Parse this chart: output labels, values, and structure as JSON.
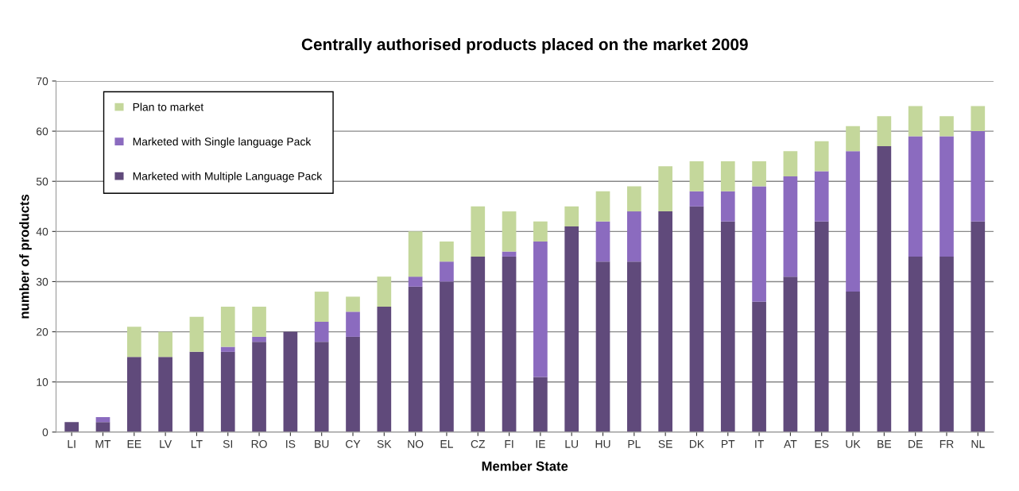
{
  "chart_data": {
    "type": "bar",
    "title": "Centrally authorised products placed on the market 2009",
    "xlabel": "Member State",
    "ylabel": "number of products",
    "categories": [
      "LI",
      "MT",
      "EE",
      "LV",
      "LT",
      "SI",
      "RO",
      "IS",
      "BU",
      "CY",
      "SK",
      "NO",
      "EL",
      "CZ",
      "FI",
      "IE",
      "LU",
      "HU",
      "PL",
      "SE",
      "DK",
      "PT",
      "IT",
      "AT",
      "ES",
      "UK",
      "BE",
      "DE",
      "FR",
      "NL"
    ],
    "stacked": true,
    "ylim": [
      0,
      70
    ],
    "yticks": [
      0,
      10,
      20,
      30,
      40,
      50,
      60,
      70
    ],
    "grid": "y",
    "legend": "top left",
    "series": [
      {
        "name": "Marketed with Multiple Language Pack",
        "color": "#604a7b",
        "values": [
          2,
          2,
          15,
          15,
          16,
          16,
          18,
          20,
          18,
          19,
          25,
          29,
          30,
          35,
          35,
          11,
          41,
          34,
          34,
          44,
          45,
          42,
          26,
          31,
          42,
          28,
          57,
          35,
          35,
          42
        ]
      },
      {
        "name": "Marketed with Single language Pack",
        "color": "#8b6bbf",
        "values": [
          0,
          1,
          0,
          0,
          0,
          1,
          1,
          0,
          4,
          5,
          0,
          2,
          4,
          0,
          1,
          27,
          0,
          8,
          10,
          0,
          3,
          6,
          23,
          20,
          10,
          28,
          0,
          24,
          24,
          18
        ]
      },
      {
        "name": "Plan to market",
        "color": "#c4d79b",
        "values": [
          0,
          0,
          6,
          5,
          7,
          8,
          6,
          0,
          6,
          3,
          6,
          9,
          4,
          10,
          8,
          4,
          4,
          6,
          5,
          9,
          6,
          6,
          5,
          5,
          6,
          5,
          6,
          6,
          4,
          5
        ]
      }
    ]
  }
}
